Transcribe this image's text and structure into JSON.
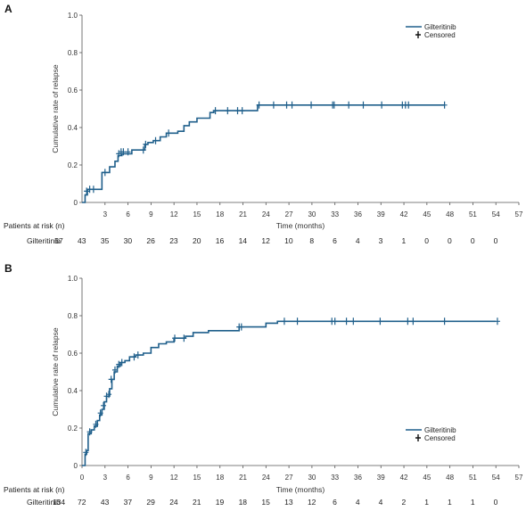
{
  "colors": {
    "series": "#1f5f8b",
    "axis": "#555555",
    "text": "#222222"
  },
  "chart_data": [
    {
      "panel": "A",
      "type": "line",
      "xlabel": "Time (months)",
      "ylabel": "Cumulative rate of relapse",
      "xlim": [
        0,
        57
      ],
      "ylim": [
        0,
        1.0
      ],
      "xticks": [
        "3",
        "6",
        "9",
        "12",
        "15",
        "18",
        "21",
        "24",
        "27",
        "30",
        "33",
        "36",
        "39",
        "42",
        "45",
        "48",
        "51",
        "54",
        "57"
      ],
      "yticks": [
        "0",
        "0.2",
        "0.4",
        "0.6",
        "0.8",
        "1.0"
      ],
      "legend": {
        "position": "top-right",
        "series_label": "Gilteritinib",
        "censored_label": "Censored"
      },
      "series": [
        {
          "name": "Gilteritinib",
          "steps": [
            [
              0,
              0
            ],
            [
              0.4,
              0.04
            ],
            [
              0.7,
              0.07
            ],
            [
              2.5,
              0.07
            ],
            [
              2.6,
              0.16
            ],
            [
              3.6,
              0.19
            ],
            [
              4.3,
              0.22
            ],
            [
              4.7,
              0.25
            ],
            [
              5.2,
              0.26
            ],
            [
              6.5,
              0.28
            ],
            [
              8.2,
              0.31
            ],
            [
              8.6,
              0.32
            ],
            [
              9.3,
              0.33
            ],
            [
              10.2,
              0.35
            ],
            [
              11.0,
              0.37
            ],
            [
              12.5,
              0.38
            ],
            [
              13.3,
              0.41
            ],
            [
              14.0,
              0.43
            ],
            [
              15.0,
              0.45
            ],
            [
              16.0,
              0.45
            ],
            [
              16.7,
              0.48
            ],
            [
              17.2,
              0.49
            ],
            [
              22.9,
              0.52
            ],
            [
              47.3,
              0.52
            ]
          ],
          "censored": [
            [
              0.6,
              0.06
            ],
            [
              1.0,
              0.07
            ],
            [
              1.5,
              0.07
            ],
            [
              3.0,
              0.16
            ],
            [
              4.8,
              0.26
            ],
            [
              5.1,
              0.27
            ],
            [
              5.4,
              0.27
            ],
            [
              6.0,
              0.27
            ],
            [
              8.0,
              0.28
            ],
            [
              8.3,
              0.31
            ],
            [
              9.6,
              0.33
            ],
            [
              11.3,
              0.37
            ],
            [
              17.4,
              0.49
            ],
            [
              19.0,
              0.49
            ],
            [
              20.3,
              0.49
            ],
            [
              20.9,
              0.49
            ],
            [
              23.1,
              0.52
            ],
            [
              25.0,
              0.52
            ],
            [
              26.7,
              0.52
            ],
            [
              27.4,
              0.52
            ],
            [
              29.9,
              0.52
            ],
            [
              32.7,
              0.52
            ],
            [
              32.9,
              0.52
            ],
            [
              34.8,
              0.52
            ],
            [
              36.7,
              0.52
            ],
            [
              39.1,
              0.52
            ],
            [
              41.8,
              0.52
            ],
            [
              42.2,
              0.52
            ],
            [
              42.6,
              0.52
            ],
            [
              47.3,
              0.52
            ]
          ]
        }
      ],
      "risk_table": {
        "title": "Patients at risk (n)",
        "row_label": "Gilteritinib",
        "values": [
          "57",
          "43",
          "35",
          "30",
          "26",
          "23",
          "20",
          "16",
          "14",
          "12",
          "10",
          "8",
          "6",
          "4",
          "3",
          "1",
          "0",
          "0",
          "0",
          "0"
        ]
      }
    },
    {
      "panel": "B",
      "type": "line",
      "xlabel": "Time (months)",
      "ylabel": "Cumulative rate of relapse",
      "xlim": [
        0,
        57
      ],
      "ylim": [
        0,
        1.0
      ],
      "xticks": [
        "0",
        "3",
        "6",
        "9",
        "12",
        "15",
        "18",
        "21",
        "24",
        "27",
        "30",
        "33",
        "36",
        "39",
        "42",
        "45",
        "48",
        "51",
        "54",
        "57"
      ],
      "yticks": [
        "0",
        "0.2",
        "0.4",
        "0.6",
        "0.8",
        "1.0"
      ],
      "legend": {
        "position": "bottom-right",
        "series_label": "Gilteritinib",
        "censored_label": "Censored"
      },
      "series": [
        {
          "name": "Gilteritinib",
          "steps": [
            [
              0,
              0
            ],
            [
              0.4,
              0.06
            ],
            [
              0.6,
              0.08
            ],
            [
              0.8,
              0.17
            ],
            [
              1.2,
              0.19
            ],
            [
              1.6,
              0.21
            ],
            [
              2.0,
              0.24
            ],
            [
              2.3,
              0.27
            ],
            [
              2.6,
              0.3
            ],
            [
              2.9,
              0.34
            ],
            [
              3.2,
              0.37
            ],
            [
              3.6,
              0.41
            ],
            [
              3.9,
              0.46
            ],
            [
              4.2,
              0.5
            ],
            [
              4.6,
              0.53
            ],
            [
              5.0,
              0.55
            ],
            [
              5.6,
              0.56
            ],
            [
              6.2,
              0.58
            ],
            [
              7.0,
              0.59
            ],
            [
              8.0,
              0.6
            ],
            [
              9.0,
              0.63
            ],
            [
              10.0,
              0.65
            ],
            [
              11.0,
              0.66
            ],
            [
              12.0,
              0.68
            ],
            [
              13.5,
              0.69
            ],
            [
              14.5,
              0.71
            ],
            [
              16.5,
              0.72
            ],
            [
              20.5,
              0.74
            ],
            [
              24.0,
              0.76
            ],
            [
              25.5,
              0.77
            ],
            [
              54.0,
              0.77
            ]
          ],
          "censored": [
            [
              0.5,
              0.07
            ],
            [
              1.0,
              0.18
            ],
            [
              1.8,
              0.22
            ],
            [
              2.4,
              0.28
            ],
            [
              2.8,
              0.32
            ],
            [
              3.2,
              0.37
            ],
            [
              3.5,
              0.38
            ],
            [
              3.8,
              0.46
            ],
            [
              4.3,
              0.51
            ],
            [
              4.8,
              0.54
            ],
            [
              5.2,
              0.55
            ],
            [
              6.8,
              0.58
            ],
            [
              7.3,
              0.59
            ],
            [
              12.1,
              0.68
            ],
            [
              13.3,
              0.68
            ],
            [
              20.5,
              0.74
            ],
            [
              20.8,
              0.74
            ],
            [
              26.4,
              0.77
            ],
            [
              28.1,
              0.77
            ],
            [
              32.6,
              0.77
            ],
            [
              33.0,
              0.77
            ],
            [
              34.5,
              0.77
            ],
            [
              35.4,
              0.77
            ],
            [
              38.9,
              0.77
            ],
            [
              42.5,
              0.77
            ],
            [
              43.2,
              0.77
            ],
            [
              47.3,
              0.77
            ],
            [
              54.2,
              0.77
            ]
          ]
        }
      ],
      "risk_table": {
        "title": "Patients at risk (n)",
        "row_label": "Gilteritinib",
        "values": [
          "134",
          "72",
          "43",
          "37",
          "29",
          "24",
          "21",
          "19",
          "18",
          "15",
          "13",
          "12",
          "6",
          "4",
          "4",
          "2",
          "1",
          "1",
          "1",
          "0"
        ]
      }
    }
  ]
}
